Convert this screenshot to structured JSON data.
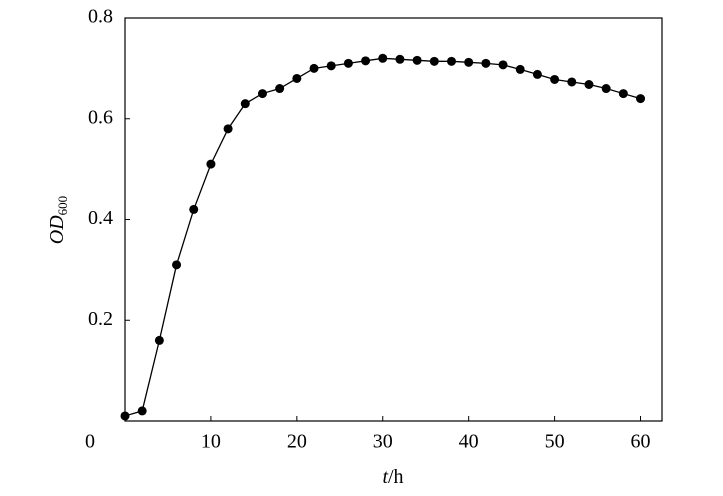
{
  "chart_data": {
    "type": "line",
    "x_label": {
      "italic": "t",
      "rest": "/h"
    },
    "y_label": {
      "main": "OD",
      "sub": "600"
    },
    "x": [
      0,
      2,
      4,
      6,
      8,
      10,
      12,
      14,
      16,
      18,
      20,
      22,
      24,
      26,
      28,
      30,
      32,
      34,
      36,
      38,
      40,
      42,
      44,
      46,
      48,
      50,
      52,
      54,
      56,
      58,
      60
    ],
    "series": [
      {
        "color": "#000000",
        "values": [
          0.01,
          0.02,
          0.16,
          0.31,
          0.42,
          0.51,
          0.58,
          0.63,
          0.65,
          0.66,
          0.68,
          0.7,
          0.705,
          0.71,
          0.715,
          0.72,
          0.718,
          0.716,
          0.714,
          0.714,
          0.712,
          0.71,
          0.707,
          0.698,
          0.688,
          0.678,
          0.673,
          0.668,
          0.66,
          0.65,
          0.64
        ]
      }
    ],
    "xlim": [
      0,
      62.5
    ],
    "xticks": [
      10,
      20,
      30,
      40,
      50,
      60
    ],
    "ylim": [
      0,
      0.8
    ],
    "yticks": [
      0,
      0.2,
      0.4,
      0.6,
      0.8
    ]
  }
}
